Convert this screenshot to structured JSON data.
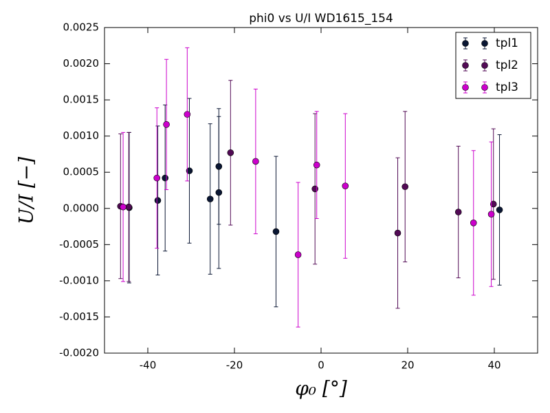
{
  "chart_data": {
    "type": "errorbar",
    "title": "phi0 vs U/I WD1615_154",
    "xlabel": "φ₀ [°]",
    "ylabel": "U/I [−]",
    "xlim": [
      -50,
      50
    ],
    "xticks": [
      -40,
      -20,
      0,
      20,
      40
    ],
    "ylim": [
      -0.002,
      0.0025
    ],
    "yticks": [
      {
        "value": -0.002,
        "label": "-0.0020"
      },
      {
        "value": -0.0015,
        "label": "-0.0015"
      },
      {
        "value": -0.001,
        "label": "-0.0010"
      },
      {
        "value": -0.0005,
        "label": "-0.0005"
      },
      {
        "value": 0,
        "label": "0.0000"
      },
      {
        "value": 0.0005,
        "label": "0.0005"
      },
      {
        "value": 0.001,
        "label": "0.0010"
      },
      {
        "value": 0.0015,
        "label": "0.0015"
      },
      {
        "value": 0.002,
        "label": "0.0020"
      },
      {
        "value": 0.0025,
        "label": "0.0025"
      }
    ],
    "legend": "upper right",
    "series": [
      {
        "name": "tpl1",
        "color": "#0a1633",
        "x": [
          -44.3,
          -37.7,
          -36.0,
          -30.4,
          -25.6,
          -23.6,
          -23.6,
          -10.4,
          41.2
        ],
        "values": [
          1e-05,
          0.00011,
          0.00042,
          0.00052,
          0.00013,
          0.00058,
          0.00022,
          -0.00032,
          -2e-05
        ],
        "errors": [
          0.00104,
          0.00103,
          0.00101,
          0.001,
          0.00104,
          0.0008,
          0.00105,
          0.00104,
          0.00104
        ]
      },
      {
        "name": "tpl2",
        "color": "#520a55",
        "x": [
          -46.3,
          -44.4,
          -20.9,
          -1.4,
          17.7,
          19.4,
          31.7,
          39.8
        ],
        "values": [
          3e-05,
          2e-05,
          0.00077,
          0.00027,
          -0.00034,
          0.0003,
          -5e-05,
          6e-05
        ],
        "errors": [
          0.001,
          0.00103,
          0.001,
          0.00104,
          0.00104,
          0.00104,
          0.00091,
          0.00104
        ]
      },
      {
        "name": "tpl3",
        "color": "#cc00cc",
        "x": [
          -45.7,
          -37.9,
          -35.7,
          -30.9,
          -15.1,
          -5.3,
          -1.0,
          5.6,
          35.2,
          39.3
        ],
        "values": [
          2e-05,
          0.00042,
          0.00116,
          0.0013,
          0.00065,
          -0.00064,
          0.0006,
          0.00031,
          -0.0002,
          -8e-05
        ],
        "errors": [
          0.00103,
          0.00097,
          0.0009,
          0.00092,
          0.001,
          0.001,
          0.00074,
          0.001,
          0.001,
          0.001
        ]
      }
    ]
  }
}
